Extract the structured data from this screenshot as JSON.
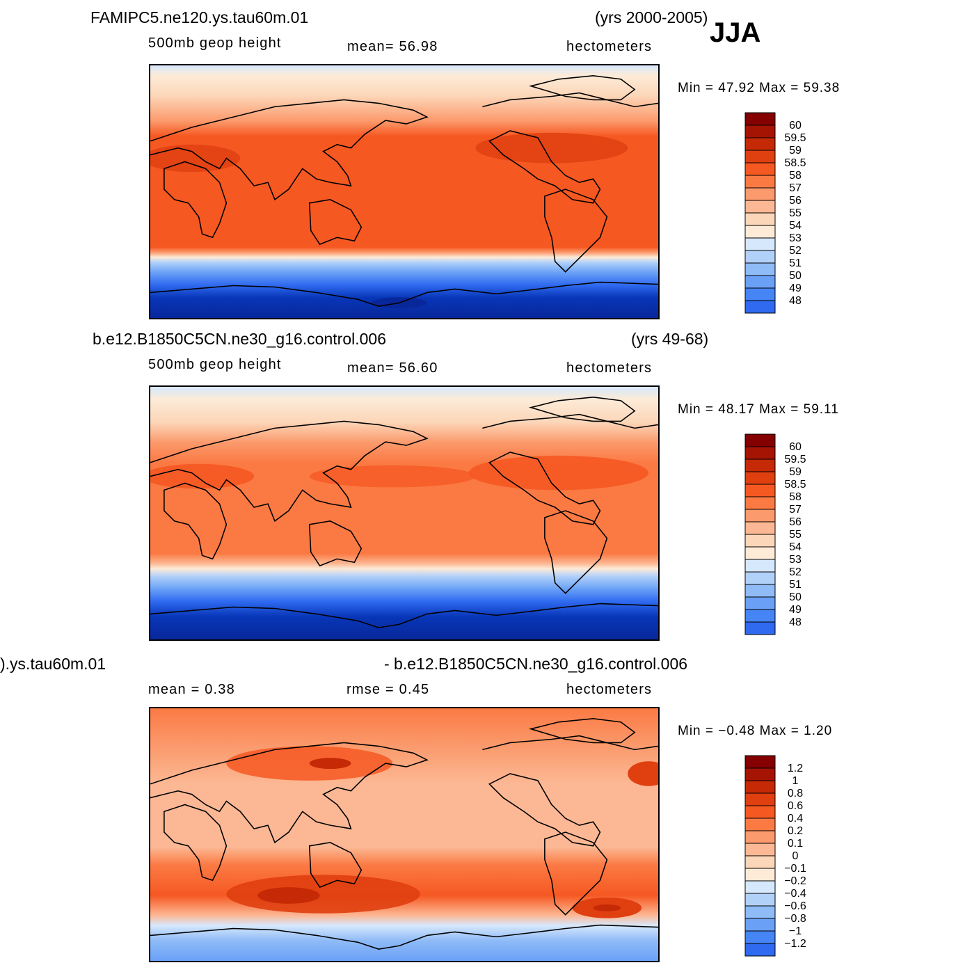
{
  "season": "JJA",
  "colors": {
    "abs_scale": [
      "#08279a",
      "#0836b8",
      "#1a52d6",
      "#2f6af0",
      "#4585f5",
      "#6aa1f7",
      "#8fbbf7",
      "#b2d1f9",
      "#d6e8fc",
      "#fdebd8",
      "#fcd6b8",
      "#fcb894",
      "#fb9a6c",
      "#fb7a44",
      "#f65822",
      "#e03f10",
      "#c52906",
      "#a51403",
      "#850000"
    ],
    "diff_scale": [
      "#08279a",
      "#0836b8",
      "#1a52d6",
      "#2f6af0",
      "#4585f5",
      "#6aa1f7",
      "#8fbbf7",
      "#b2d1f9",
      "#d6e8fc",
      "#fdebd8",
      "#fcd6b8",
      "#fcb894",
      "#fb9a6c",
      "#fb7a44",
      "#f65822",
      "#e03f10",
      "#c52906",
      "#a51403",
      "#850000"
    ]
  },
  "panels": [
    {
      "case_name": "FAMIPC5.ne120.ys.tau60m.01",
      "years": "(yrs 2000-2005)",
      "variable": "500mb geop height",
      "mean_label": "mean=   56.98",
      "units": "hectometers",
      "minmax": "Min =   47.92  Max =   59.38",
      "colorbar_labels": [
        "60",
        "59.5",
        "59",
        "58.5",
        "58",
        "57",
        "56",
        "55",
        "54",
        "53",
        "52",
        "51",
        "50",
        "49",
        "48"
      ]
    },
    {
      "case_name": "b.e12.B1850C5CN.ne30_g16.control.006",
      "years": "(yrs 49-68)",
      "variable": "500mb geop height",
      "mean_label": "mean=   56.60",
      "units": "hectometers",
      "minmax": "Min =   48.17  Max =   59.11",
      "colorbar_labels": [
        "60",
        "59.5",
        "59",
        "58.5",
        "58",
        "57",
        "56",
        "55",
        "54",
        "53",
        "52",
        "51",
        "50",
        "49",
        "48"
      ]
    },
    {
      "case_name": ").ys.tau60m.01",
      "case_name_right": "- b.e12.B1850C5CN.ne30_g16.control.006",
      "mean_label": "mean =     0.38",
      "rmse_label": "rmse =     0.45",
      "units": "hectometers",
      "minmax": "Min =   −0.48  Max =      1.20",
      "colorbar_labels": [
        "1.2",
        "1",
        "0.8",
        "0.6",
        "0.4",
        "0.2",
        "0.1",
        "0",
        "−0.1",
        "−0.2",
        "−0.4",
        "−0.6",
        "−0.8",
        "−1",
        "−1.2"
      ]
    }
  ]
}
